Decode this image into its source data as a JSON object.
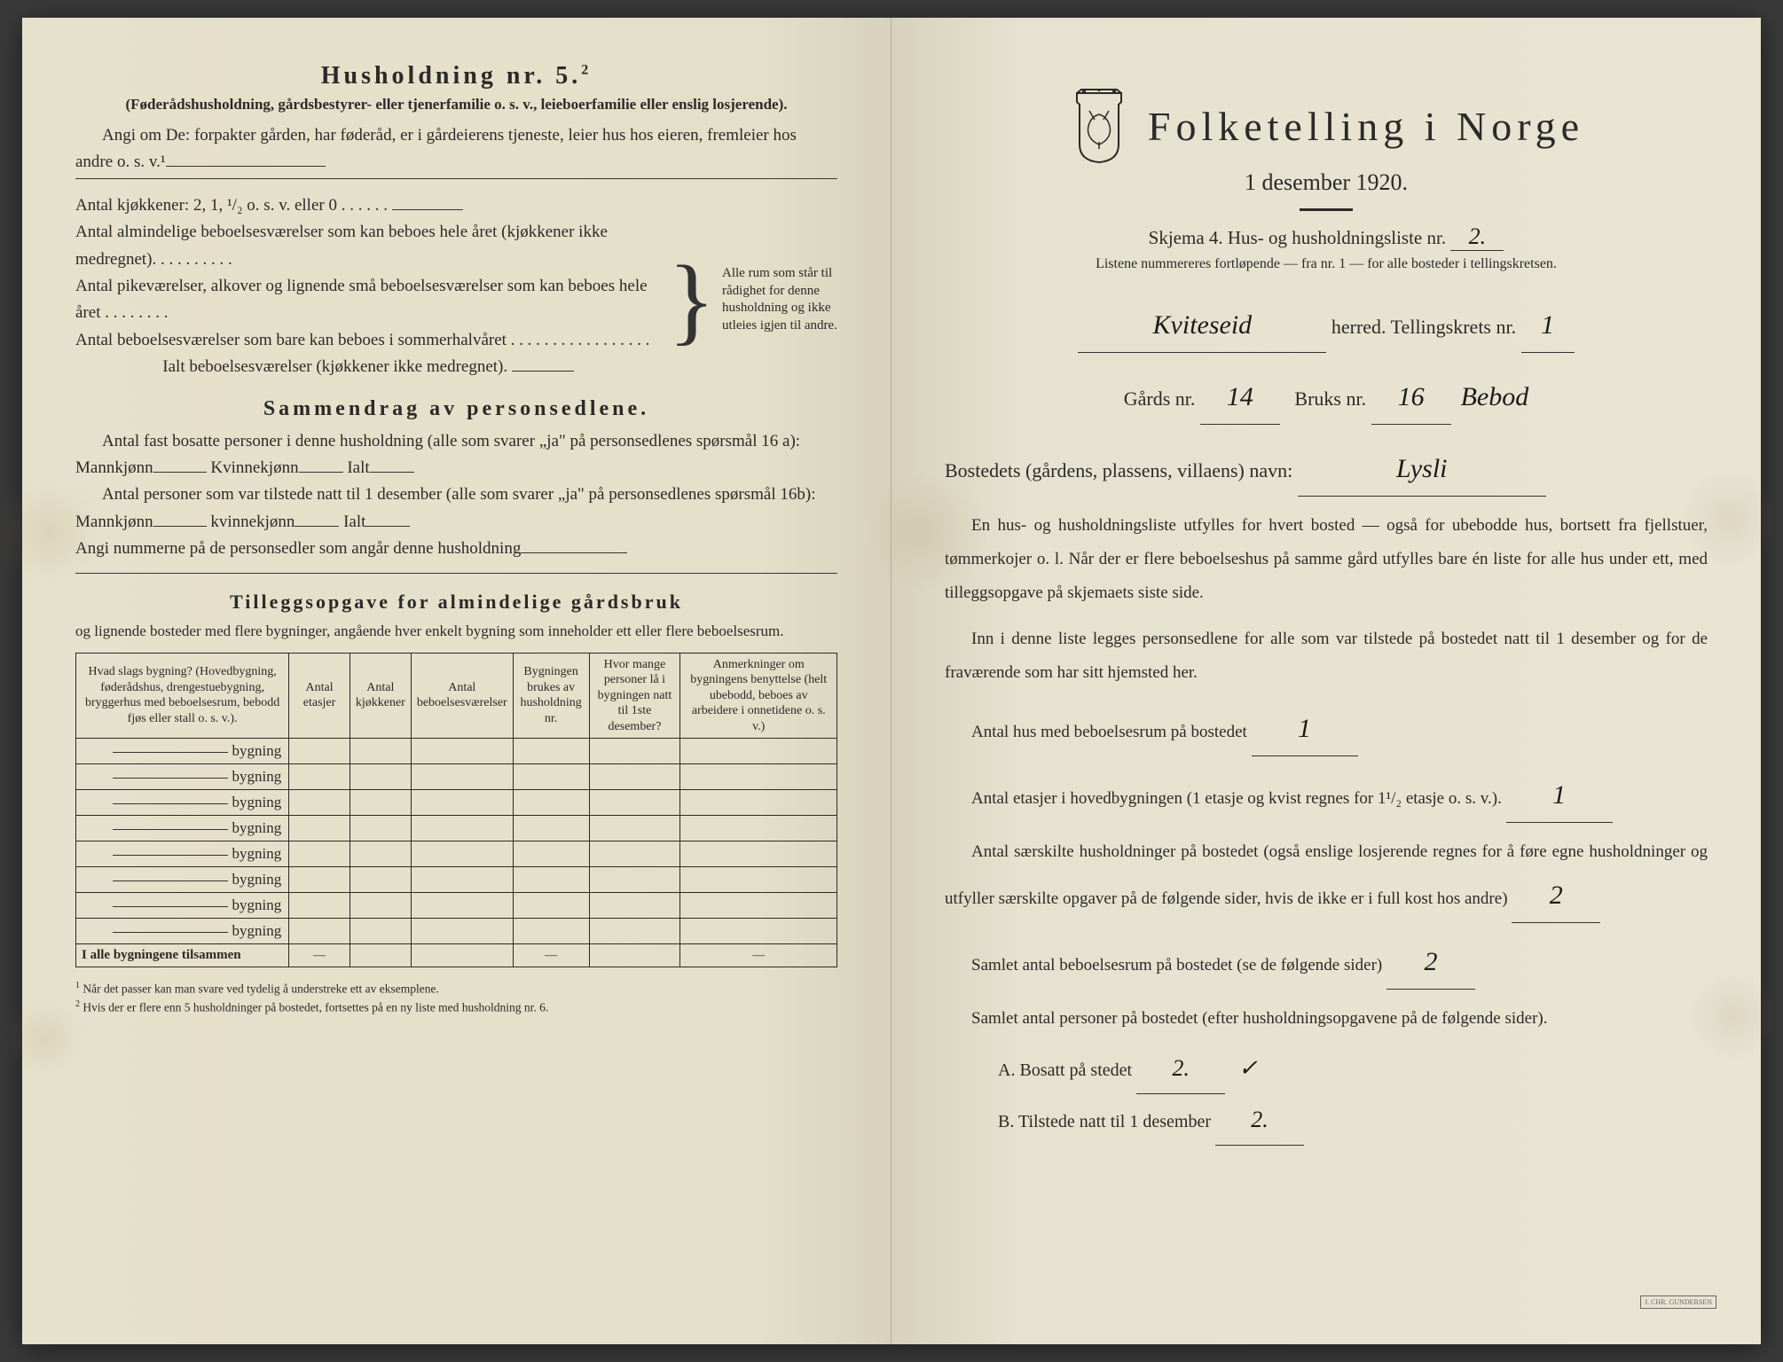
{
  "left": {
    "husholdning_title": "Husholdning nr. 5.",
    "husholdning_sup": "2",
    "husholdning_sub": "(Føderådshusholdning, gårdsbestyrer- eller tjenerfamilie o. s. v., leieboerfamilie eller enslig losjerende).",
    "angi_line": "Angi om De: forpakter gården, har føderåd, er i gårdeierens tjeneste, leier hus hos eieren, fremleier hos andre o. s. v.¹",
    "kjokken_line": "Antal kjøkkener: 2, 1, ¹/₂ o. s. v. eller 0 . . . . . .",
    "room1": "Antal almindelige beboelsesværelser som kan beboes hele året (kjøkkener ikke medregnet). . . . . . . . . .",
    "room2": "Antal pikeværelser, alkover og lignende små beboelsesværelser som kan beboes hele året . . . . . . . .",
    "room3": "Antal beboelsesværelser som bare kan beboes i sommerhalvåret . . . . . . . . . . . . . . . . .",
    "room_total": "Ialt beboelsesværelser (kjøkkener ikke medregnet).",
    "brace_text": "Alle rum som står til rådighet for denne husholdning og ikke utleies igjen til andre.",
    "sammendrag_title": "Sammendrag av personsedlene.",
    "samm1": "Antal fast bosatte personer i denne husholdning (alle som svarer „ja\" på personsedlenes spørsmål 16 a): Mannkjønn",
    "samm1b": "Kvinnekjønn",
    "samm1c": "Ialt",
    "samm2": "Antal personer som var tilstede natt til 1 desember (alle som svarer „ja\" på personsedlenes spørsmål 16b): Mannkjønn",
    "samm2b": "kvinnekjønn",
    "samm2c": "Ialt",
    "samm3": "Angi nummerne på de personsedler som angår denne husholdning",
    "tillegg_title": "Tilleggsopgave for almindelige gårdsbruk",
    "tillegg_sub": "og lignende bosteder med flere bygninger, angående hver enkelt bygning som inneholder ett eller flere beboelsesrum.",
    "table": {
      "headers": [
        "Hvad slags bygning?\n(Hovedbygning, føderådshus, drengestuebygning, bryggerhus med beboelsesrum, bebodd fjøs eller stall o. s. v.).",
        "Antal etasjer",
        "Antal kjøkkener",
        "Antal beboelsesværelser",
        "Bygningen brukes av husholdning nr.",
        "Hvor mange personer lå i bygningen natt til 1ste desember?",
        "Anmerkninger om bygningens benyttelse (helt ubebodd, beboes av arbeidere i onnetidene o. s. v.)"
      ],
      "row_label": "bygning",
      "row_count": 8,
      "footer_label": "I alle bygningene tilsammen",
      "footer_dash": "—"
    },
    "footnote1": "Når det passer kan man svare ved tydelig å understreke ett av eksemplene.",
    "footnote2": "Hvis der er flere enn 5 husholdninger på bostedet, fortsettes på en ny liste med husholdning nr. 6."
  },
  "right": {
    "main_title": "Folketelling i Norge",
    "date": "1 desember 1920.",
    "skjema": "Skjema 4.   Hus- og husholdningsliste nr.",
    "skjema_val": "2.",
    "listene": "Listene nummereres fortløpende — fra nr. 1 — for alle bosteder i tellingskretsen.",
    "herred_val": "Kviteseid",
    "herred_label": "herred.    Tellingskrets nr.",
    "krets_val": "1",
    "gards_label": "Gårds nr.",
    "gards_val": "14",
    "bruks_label": "Bruks nr.",
    "bruks_val": "16",
    "bebod": "Bebod",
    "bosted_label": "Bostedets (gårdens, plassens, villaens) navn:",
    "bosted_val": "Lysli",
    "para1": "En hus- og husholdningsliste utfylles for hvert bosted — også for ubebodde hus, bortsett fra fjellstuer, tømmerkojer o. l. Når der er flere beboelseshus på samme gård utfylles bare én liste for alle hus under ett, med tilleggsopgave på skjemaets siste side.",
    "para2": "Inn i denne liste legges personsedlene for alle som var tilstede på bostedet natt til 1 desember og for de fraværende som har sitt hjemsted her.",
    "q1": "Antal hus med beboelsesrum på bostedet",
    "q1_val": "1",
    "q2a": "Antal etasjer i hovedbygningen (1 etasje og kvist regnes for 1¹/₂ etasje o. s. v.).",
    "q2_val": "1",
    "q3": "Antal særskilte husholdninger på bostedet (også enslige losjerende regnes for å føre egne husholdninger og utfyller særskilte opgaver på de følgende sider, hvis de ikke er i full kost hos andre)",
    "q3_val": "2",
    "q4": "Samlet antal beboelsesrum på bostedet (se de følgende sider)",
    "q4_val": "2",
    "q5": "Samlet antal personer på bostedet (efter husholdningsopgavene på de følgende sider).",
    "qA": "A.  Bosatt på stedet",
    "qA_val": "2.",
    "qA_mark": "✓",
    "qB": "B.  Tilstede natt til 1 desember",
    "qB_val": "2.",
    "printer": "J. CHR. GUNDERSEN"
  },
  "colors": {
    "paper": "#e8e3d0",
    "ink": "#2a2a28",
    "hand": "#1a1a1a"
  }
}
